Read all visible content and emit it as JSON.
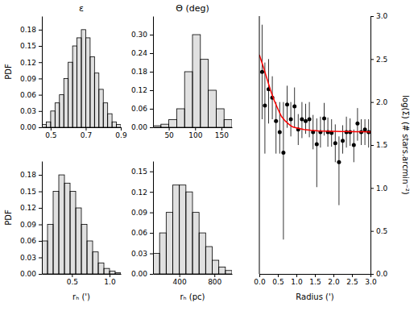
{
  "chart_data": [
    {
      "type": "histogram",
      "title": "ε",
      "ylabel": "PDF",
      "color": "black",
      "bins": [
        0.45,
        0.475,
        0.5,
        0.525,
        0.55,
        0.575,
        0.6,
        0.625,
        0.65,
        0.675,
        0.7,
        0.725,
        0.75,
        0.775,
        0.8,
        0.825,
        0.85,
        0.875,
        0.9
      ],
      "values": [
        0.005,
        0.01,
        0.03,
        0.045,
        0.06,
        0.09,
        0.12,
        0.15,
        0.165,
        0.18,
        0.165,
        0.13,
        0.1,
        0.07,
        0.045,
        0.025,
        0.01,
        0.005
      ],
      "xlim": [
        0.45,
        0.9
      ],
      "ylim": [
        0.0,
        0.205
      ],
      "xticks": [
        0.5,
        0.7,
        0.9
      ],
      "yticks": [
        {
          "value": 0.0,
          "label": "0.00"
        },
        0.03,
        0.06,
        0.09,
        0.12,
        0.15,
        0.18
      ]
    },
    {
      "type": "histogram",
      "title": "Θ (deg)",
      "color": "black",
      "bins": [
        20,
        35,
        50,
        65,
        80,
        95,
        110,
        125,
        140,
        155,
        170
      ],
      "values": [
        0.005,
        0.01,
        0.025,
        0.06,
        0.18,
        0.3,
        0.22,
        0.12,
        0.06,
        0.025
      ],
      "xlim": [
        20,
        170
      ],
      "ylim": [
        0.0,
        0.36
      ],
      "xticks": [
        50,
        100,
        150
      ],
      "yticks": [
        {
          "value": 0.0,
          "label": "0.00"
        },
        0.06,
        0.12,
        0.18,
        0.24,
        {
          "value": 0.3,
          "label": "0.30"
        }
      ]
    },
    {
      "type": "histogram",
      "xlabel": "rₕ (')",
      "ylabel": "PDF",
      "color": "black",
      "bins": [
        0.1,
        0.175,
        0.25,
        0.325,
        0.4,
        0.475,
        0.55,
        0.625,
        0.7,
        0.775,
        0.85,
        0.925,
        1.0,
        1.075,
        1.15
      ],
      "values": [
        0.06,
        0.09,
        0.15,
        0.18,
        0.165,
        0.15,
        0.12,
        0.09,
        0.06,
        0.04,
        0.02,
        0.01,
        0.005,
        0.002
      ],
      "xlim": [
        0.1,
        1.15
      ],
      "ylim": [
        0.0,
        0.205
      ],
      "xticks": [
        0.5,
        {
          "value": 1.0,
          "label": "1.0"
        }
      ],
      "yticks": [
        {
          "value": 0.0,
          "label": "0.00"
        },
        0.03,
        0.06,
        0.09,
        0.12,
        0.15,
        0.18
      ]
    },
    {
      "type": "histogram",
      "xlabel": "rₕ (pc)",
      "color": "black",
      "bins": [
        100,
        175,
        250,
        325,
        400,
        475,
        550,
        625,
        700,
        775,
        850,
        925,
        1000
      ],
      "values": [
        0.03,
        0.06,
        0.09,
        0.13,
        0.13,
        0.12,
        0.09,
        0.06,
        0.04,
        0.02,
        0.01,
        0.005
      ],
      "xlim": [
        100,
        1000
      ],
      "ylim": [
        0.0,
        0.165
      ],
      "xticks": [
        400,
        800
      ],
      "yticks": [
        {
          "value": 0.0,
          "label": "0.00"
        },
        0.03,
        0.06,
        0.09,
        0.12,
        0.15
      ]
    },
    {
      "type": "scatter",
      "xlabel": "Radius (')",
      "ylabel": "log(Σ) (# stars.arcmin⁻²)",
      "series": [
        {
          "type": "scatter",
          "marker": "circle",
          "color": "black",
          "x": [
            0.075,
            0.15,
            0.25,
            0.35,
            0.45,
            0.55,
            0.65,
            0.75,
            0.85,
            0.95,
            1.05,
            1.15,
            1.25,
            1.35,
            1.45,
            1.55,
            1.65,
            1.75,
            1.85,
            1.95,
            2.05,
            2.15,
            2.25,
            2.35,
            2.45,
            2.55,
            2.65,
            2.75,
            2.85,
            2.95
          ],
          "values": [
            2.35,
            1.96,
            2.15,
            2.05,
            1.78,
            1.65,
            1.41,
            1.97,
            1.8,
            1.95,
            1.68,
            1.8,
            1.78,
            1.8,
            1.65,
            1.51,
            1.65,
            1.81,
            1.65,
            1.64,
            1.52,
            1.3,
            1.55,
            1.65,
            1.65,
            1.5,
            1.75,
            1.65,
            1.68,
            1.65
          ],
          "yerr_low": [
            0.55,
            0.56,
            0.4,
            0.25,
            0.38,
            0.25,
            1.01,
            0.27,
            0.2,
            0.25,
            0.18,
            0.22,
            0.15,
            0.21,
            0.2,
            0.5,
            0.18,
            0.2,
            0.17,
            0.16,
            0.22,
            0.5,
            0.15,
            0.18,
            0.16,
            0.2,
            0.2,
            0.15,
            0.18,
            0.18
          ],
          "yerr_high": [
            0.55,
            0.5,
            0.35,
            0.25,
            0.22,
            0.35,
            0.59,
            0.22,
            0.2,
            0.22,
            0.18,
            0.2,
            0.2,
            0.2,
            0.2,
            0.3,
            0.18,
            0.18,
            0.17,
            0.16,
            0.22,
            0.3,
            0.18,
            0.18,
            0.16,
            0.18,
            0.18,
            0.15,
            0.12,
            0.15
          ]
        },
        {
          "type": "line",
          "line_style": "solid",
          "color": "red",
          "x": [
            0.0,
            0.1,
            0.2,
            0.3,
            0.4,
            0.5,
            0.6,
            0.7,
            0.8,
            0.9,
            1.0,
            1.2,
            1.4,
            1.6,
            1.8,
            2.0,
            2.2,
            2.4,
            2.6,
            2.8,
            3.0
          ],
          "values": [
            2.55,
            2.42,
            2.28,
            2.14,
            2.02,
            1.92,
            1.83,
            1.78,
            1.74,
            1.71,
            1.7,
            1.68,
            1.67,
            1.665,
            1.662,
            1.66,
            1.658,
            1.656,
            1.655,
            1.654,
            1.653
          ]
        }
      ],
      "xlim": [
        0.0,
        3.0
      ],
      "ylim": [
        0.0,
        3.0
      ],
      "xticks": [
        {
          "value": 0.0,
          "label": "0.0"
        },
        0.5,
        {
          "value": 1.0,
          "label": "1.0"
        },
        1.5,
        {
          "value": 2.0,
          "label": "2.0"
        },
        2.5,
        {
          "value": 3.0,
          "label": "3.0"
        }
      ],
      "yticks": [
        {
          "value": 0.0,
          "label": "0.0"
        },
        0.5,
        {
          "value": 1.0,
          "label": "1.0"
        },
        1.5,
        {
          "value": 2.0,
          "label": "2.0"
        },
        2.5,
        {
          "value": 3.0,
          "label": "3.0"
        }
      ]
    }
  ]
}
